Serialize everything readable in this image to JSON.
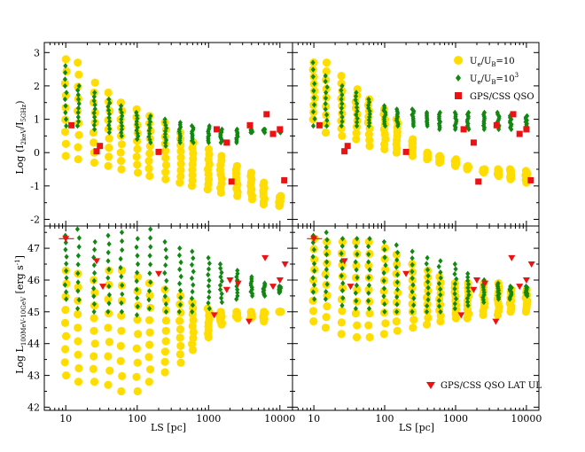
{
  "chart_data": {
    "type": "scatter",
    "xlabel": "LS [pc]",
    "ylabel_top": "Log (I",
    "ylabel_top_sub1": "2keV",
    "ylabel_top_mid": "/I",
    "ylabel_top_sub2": "5GHz",
    "ylabel_top_end": ")",
    "ylabel_bottom": "Log L",
    "ylabel_bottom_sub": "100MeV-10GeV",
    "ylabel_bottom_unit": " [erg s",
    "ylabel_bottom_sup": "-1",
    "ylabel_bottom_end": "]",
    "x_log": true,
    "xlim": [
      5,
      15000
    ],
    "xticks": [
      "10",
      "100",
      "1000",
      "10000"
    ],
    "ylim_top": [
      -2.2,
      3.3
    ],
    "yticks_top": [
      "-2",
      "-1",
      "0",
      "1",
      "2",
      "3"
    ],
    "ylim_bottom": [
      41.9,
      47.7
    ],
    "yticks_bottom": [
      "42",
      "43",
      "44",
      "45",
      "46",
      "47"
    ],
    "legend_top": {
      "placement": "top-right",
      "entries": [
        {
          "pre": "U",
          "sub": "e",
          "mid": "/U",
          "sub2": "B",
          "post": "=10",
          "sup": ""
        },
        {
          "pre": "U",
          "sub": "e",
          "mid": "/U",
          "sub2": "B",
          "post": "=10",
          "sup": "3"
        },
        {
          "pre": "GPS/CSS QSO",
          "sub": "",
          "mid": "",
          "sub2": "",
          "post": "",
          "sup": ""
        }
      ]
    },
    "legend_bottom": {
      "placement": "bottom-right",
      "entries": [
        {
          "pre": "GPS/CSS QSO LAT UL"
        }
      ]
    },
    "ls_values": [
      10,
      15,
      25,
      40,
      60,
      100,
      150,
      250,
      400,
      600,
      1000,
      1500,
      2500,
      4000,
      6000,
      10000
    ],
    "panels": [
      {
        "id": "top-left",
        "yellow_ranges": [
          [
            -0.1,
            2.8
          ],
          [
            -0.2,
            2.7
          ],
          [
            -0.3,
            2.1
          ],
          [
            -0.4,
            1.8
          ],
          [
            -0.5,
            1.5
          ],
          [
            -0.6,
            1.3
          ],
          [
            -0.7,
            1.1
          ],
          [
            -0.8,
            0.9
          ],
          [
            -0.9,
            0.6
          ],
          [
            -1.0,
            0.3
          ],
          [
            -1.1,
            0.1
          ],
          [
            -1.2,
            -0.1
          ],
          [
            -1.3,
            -0.4
          ],
          [
            -1.4,
            -0.6
          ],
          [
            -1.55,
            -0.9
          ],
          [
            -1.6,
            -1.3
          ]
        ],
        "green_ranges": [
          [
            0.8,
            2.6
          ],
          [
            0.8,
            2.0
          ],
          [
            0.7,
            1.8
          ],
          [
            0.6,
            1.6
          ],
          [
            0.5,
            1.4
          ],
          [
            0.4,
            1.2
          ],
          [
            0.3,
            1.1
          ],
          [
            0.2,
            1.0
          ],
          [
            0.3,
            0.9
          ],
          [
            0.3,
            0.8
          ],
          [
            0.3,
            0.8
          ],
          [
            0.3,
            0.7
          ],
          [
            0.3,
            0.7
          ],
          [
            0.6,
            0.7
          ],
          [
            0.6,
            0.7
          ],
          [
            0.6,
            0.7
          ]
        ]
      },
      {
        "id": "top-right",
        "yellow_ranges": [
          [
            1.0,
            2.7
          ],
          [
            0.6,
            2.7
          ],
          [
            0.5,
            2.3
          ],
          [
            0.4,
            1.9
          ],
          [
            0.2,
            1.6
          ],
          [
            0.1,
            1.3
          ],
          [
            0.0,
            1.0
          ],
          [
            -0.1,
            0.4
          ],
          [
            -0.2,
            0.0
          ],
          [
            -0.3,
            -0.1
          ],
          [
            -0.4,
            -0.2
          ],
          [
            -0.5,
            -0.4
          ],
          [
            -0.6,
            -0.5
          ],
          [
            -0.7,
            -0.5
          ],
          [
            -0.8,
            -0.5
          ],
          [
            -0.9,
            -0.55
          ]
        ],
        "green_ranges": [
          [
            0.8,
            2.7
          ],
          [
            0.8,
            2.3
          ],
          [
            0.8,
            2.0
          ],
          [
            0.8,
            1.8
          ],
          [
            0.8,
            1.6
          ],
          [
            0.8,
            1.4
          ],
          [
            0.8,
            1.3
          ],
          [
            0.8,
            1.3
          ],
          [
            0.8,
            1.2
          ],
          [
            0.7,
            1.2
          ],
          [
            0.7,
            1.2
          ],
          [
            0.7,
            1.2
          ],
          [
            0.7,
            1.2
          ],
          [
            0.7,
            1.2
          ],
          [
            0.7,
            1.15
          ],
          [
            0.7,
            1.1
          ]
        ]
      },
      {
        "id": "bottom-left",
        "yellow_ranges": [
          [
            43.0,
            46.3
          ],
          [
            42.8,
            46.2
          ],
          [
            42.8,
            46.0
          ],
          [
            42.7,
            46.3
          ],
          [
            42.5,
            46.3
          ],
          [
            42.5,
            46.1
          ],
          [
            42.8,
            45.9
          ],
          [
            43.1,
            45.7
          ],
          [
            43.4,
            45.5
          ],
          [
            43.8,
            45.3
          ],
          [
            44.2,
            45.1
          ],
          [
            44.6,
            45.0
          ],
          [
            44.8,
            45.0
          ],
          [
            44.8,
            45.0
          ],
          [
            44.7,
            45.0
          ],
          [
            45.0,
            45.0
          ]
        ],
        "green_ranges": [
          [
            45.4,
            47.4
          ],
          [
            45.1,
            47.6
          ],
          [
            45.0,
            47.2
          ],
          [
            45.0,
            47.4
          ],
          [
            45.0,
            47.5
          ],
          [
            44.9,
            47.3
          ],
          [
            45.1,
            47.6
          ],
          [
            45.0,
            47.2
          ],
          [
            45.0,
            47.0
          ],
          [
            45.0,
            46.9
          ],
          [
            45.1,
            46.7
          ],
          [
            45.3,
            46.5
          ],
          [
            45.4,
            46.3
          ],
          [
            45.5,
            46.1
          ],
          [
            45.5,
            45.9
          ],
          [
            45.6,
            45.8
          ]
        ]
      },
      {
        "id": "bottom-right",
        "yellow_ranges": [
          [
            44.7,
            47.3
          ],
          [
            44.5,
            47.2
          ],
          [
            44.3,
            47.2
          ],
          [
            44.2,
            47.2
          ],
          [
            44.2,
            47.2
          ],
          [
            44.3,
            47.0
          ],
          [
            44.4,
            46.8
          ],
          [
            44.5,
            46.5
          ],
          [
            44.6,
            46.3
          ],
          [
            44.7,
            46.1
          ],
          [
            44.8,
            45.9
          ],
          [
            44.8,
            45.9
          ],
          [
            44.9,
            45.9
          ],
          [
            44.9,
            45.9
          ],
          [
            45.0,
            45.7
          ],
          [
            45.0,
            45.7
          ]
        ],
        "green_ranges": [
          [
            45.4,
            47.4
          ],
          [
            45.4,
            47.5
          ],
          [
            45.2,
            47.3
          ],
          [
            45.1,
            47.3
          ],
          [
            45.1,
            47.3
          ],
          [
            45.0,
            47.2
          ],
          [
            45.0,
            47.1
          ],
          [
            45.0,
            46.9
          ],
          [
            45.0,
            46.7
          ],
          [
            45.0,
            46.6
          ],
          [
            45.1,
            46.5
          ],
          [
            45.2,
            46.2
          ],
          [
            45.3,
            46.0
          ],
          [
            45.4,
            45.9
          ],
          [
            45.4,
            45.8
          ],
          [
            45.5,
            45.8
          ]
        ]
      }
    ],
    "gps_css_qso_top": [
      {
        "ls": 12,
        "y": 0.82
      },
      {
        "ls": 27,
        "y": 0.04
      },
      {
        "ls": 30,
        "y": 0.2
      },
      {
        "ls": 200,
        "y": 0.02
      },
      {
        "ls": 1300,
        "y": 0.7
      },
      {
        "ls": 1800,
        "y": 0.3
      },
      {
        "ls": 2100,
        "y": -0.87
      },
      {
        "ls": 3800,
        "y": 0.82
      },
      {
        "ls": 6500,
        "y": 1.15
      },
      {
        "ls": 8000,
        "y": 0.56
      },
      {
        "ls": 10000,
        "y": 0.7
      },
      {
        "ls": 11500,
        "y": -0.83
      }
    ],
    "gps_css_qso_lat_ul": [
      {
        "ls": 10,
        "y": 47.3,
        "xerr": [
          8,
          13
        ]
      },
      {
        "ls": 27,
        "y": 46.6
      },
      {
        "ls": 33,
        "y": 45.8
      },
      {
        "ls": 200,
        "y": 46.2
      },
      {
        "ls": 1200,
        "y": 44.9
      },
      {
        "ls": 1800,
        "y": 45.7
      },
      {
        "ls": 2000,
        "y": 46.0
      },
      {
        "ls": 2600,
        "y": 45.9
      },
      {
        "ls": 3700,
        "y": 44.7
      },
      {
        "ls": 6200,
        "y": 46.7
      },
      {
        "ls": 8000,
        "y": 45.8
      },
      {
        "ls": 10000,
        "y": 46.0
      },
      {
        "ls": 11800,
        "y": 46.5
      }
    ]
  },
  "colors": {
    "yellow": "#ffdd00",
    "green": "#118811",
    "red": "#ee1111",
    "axis": "#000000"
  }
}
